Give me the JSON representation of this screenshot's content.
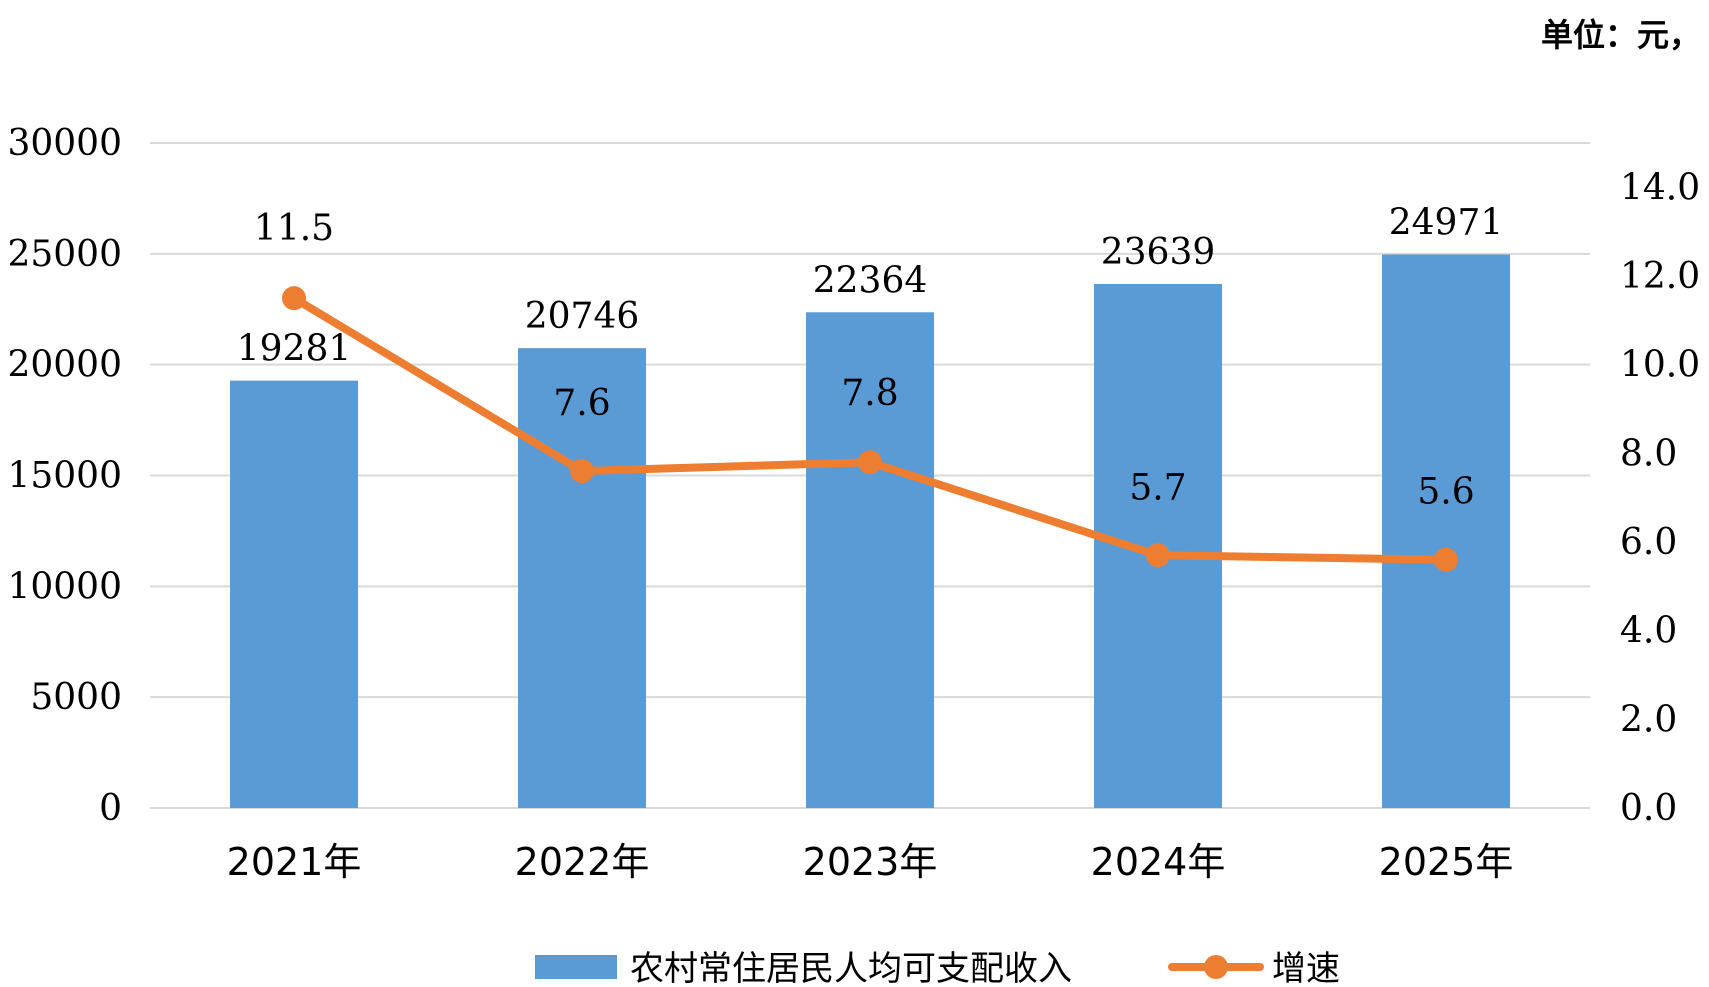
{
  "unit_label": "单位：元，",
  "colors": {
    "bar": "#5b9bd5",
    "line": "#ed7d31",
    "grid": "#d9d9d9",
    "text": "#000000"
  },
  "chart_data": {
    "type": "bar",
    "categories": [
      "2021年",
      "2022年",
      "2023年",
      "2024年",
      "2025年"
    ],
    "series": [
      {
        "name": "农村常住居民人均可支配收入",
        "type": "bar",
        "axis": "left",
        "values": [
          19281,
          20746,
          22364,
          23639,
          24971
        ]
      },
      {
        "name": "增速",
        "type": "line",
        "axis": "right",
        "values": [
          11.5,
          7.6,
          7.8,
          5.7,
          5.6
        ]
      }
    ],
    "y_left": {
      "min": 0,
      "max": 30000,
      "ticks": [
        "0",
        "5000",
        "10000",
        "15000",
        "20000",
        "25000",
        "30000"
      ]
    },
    "y_right": {
      "min": 0,
      "max": 15,
      "ticks": [
        "0.0",
        "2.0",
        "4.0",
        "6.0",
        "8.0",
        "10.0",
        "12.0",
        "14.0"
      ]
    },
    "grid": true,
    "legend_position": "bottom"
  }
}
